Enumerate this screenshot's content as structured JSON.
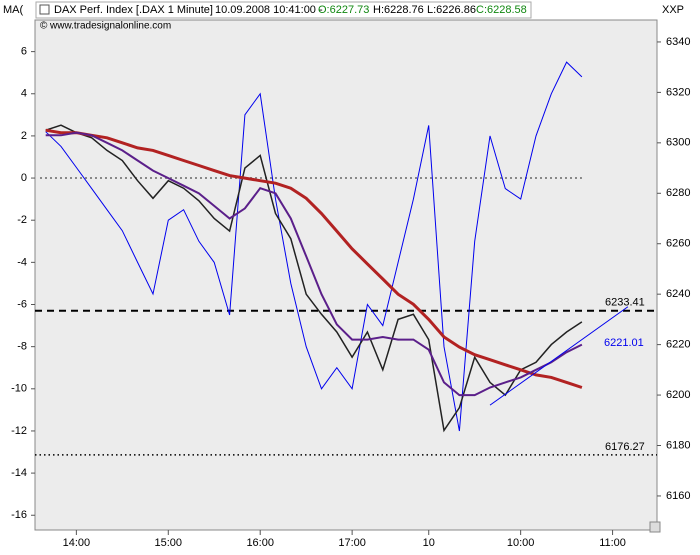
{
  "chart_data": {
    "type": "line",
    "header": {
      "instrument": "DAX Perf. Index [.DAX  1 Minute]",
      "timestamp": "10.09.2008 10:41:00 -",
      "open": "O:6227.73",
      "high": "H:6228.76",
      "low": "L:6226.86",
      "close": "C:6228.58"
    },
    "source": "www.tradesignalonline.com",
    "y_label": "MA(",
    "y2_label": "XXP",
    "x": [
      0,
      1,
      2,
      3,
      4,
      5,
      6,
      7,
      8,
      9,
      10,
      11,
      12,
      13,
      14,
      15,
      16,
      17,
      18,
      19,
      20,
      21,
      22,
      23,
      24,
      25,
      26,
      27,
      28,
      29,
      30,
      31,
      32,
      33,
      34,
      35
    ],
    "xlim": [
      -0.7,
      39.9
    ],
    "xticks": [
      {
        "value": 2,
        "label": "14:00"
      },
      {
        "value": 8,
        "label": "15:00"
      },
      {
        "value": 14,
        "label": "16:00"
      },
      {
        "value": 20,
        "label": "17:00"
      },
      {
        "value": 25,
        "label": "10"
      },
      {
        "value": 31,
        "label": "10:00"
      },
      {
        "value": 37,
        "label": "11:00"
      }
    ],
    "ylim": [
      -16.7,
      7.5
    ],
    "yticks": [
      6,
      4,
      2,
      0,
      -2,
      -4,
      -6,
      -8,
      -10,
      -12,
      -14,
      -16
    ],
    "y2lim": [
      6146.5,
      6348.7
    ],
    "y2ticks": [
      6340,
      6320,
      6300,
      6280,
      6260,
      6240,
      6220,
      6200,
      6180,
      6160
    ],
    "reference_line": 0,
    "series": [
      {
        "color": "#0000ee",
        "axis": "y",
        "width": 1,
        "values": [
          2.2,
          1.5,
          0.5,
          -0.5,
          -1.5,
          -2.5,
          -4,
          -5.5,
          -2,
          -1.5,
          -3,
          -4,
          -6.5,
          3,
          4,
          -1,
          -5,
          -8,
          -10,
          -9,
          -10,
          -6,
          -7,
          -4,
          -1,
          2.5,
          -8,
          -12,
          -3,
          2,
          -0.5,
          -1,
          2,
          4,
          5.5,
          4.8
        ]
      },
      {
        "color": "#222222",
        "axis": "y2",
        "width": 1.5,
        "values": [
          6305,
          6307,
          6304,
          6302,
          6297,
          6293,
          6285,
          6278,
          6285,
          6282,
          6277,
          6270,
          6265,
          6290,
          6295,
          6272,
          6262,
          6240,
          6232,
          6225,
          6215,
          6225,
          6210,
          6230,
          6232,
          6222,
          6186,
          6195,
          6215,
          6205,
          6200,
          6210,
          6213,
          6220,
          6225,
          6229
        ]
      },
      {
        "color": "#b22222",
        "axis": "y2",
        "width": 3,
        "values": [
          6305,
          6304,
          6304,
          6303,
          6302,
          6300,
          6298,
          6297,
          6295,
          6293,
          6291,
          6289,
          6287,
          6286,
          6285,
          6284,
          6282,
          6278,
          6272,
          6265,
          6258,
          6252,
          6246,
          6240,
          6236,
          6230,
          6223,
          6219,
          6216,
          6214,
          6212,
          6210,
          6208,
          6207,
          6205,
          6203
        ]
      },
      {
        "color": "#5b1f8a",
        "axis": "y2",
        "width": 2,
        "values": [
          6303,
          6303,
          6304,
          6303,
          6300,
          6297,
          6293,
          6289,
          6286,
          6283,
          6280,
          6275,
          6270,
          6274,
          6282,
          6280,
          6270,
          6255,
          6240,
          6228,
          6222,
          6222,
          6223,
          6222,
          6222,
          6218,
          6205,
          6200,
          6200,
          6203,
          6205,
          6207,
          6210,
          6213,
          6217,
          6220
        ]
      }
    ],
    "horizontal_lines": [
      {
        "value": 6233.41,
        "style": "dashed"
      },
      {
        "value": 6176.27,
        "style": "dotted"
      }
    ],
    "trendline": {
      "x": [
        29,
        38
      ],
      "values": [
        6196,
        6235
      ],
      "value": 6221.01,
      "color": "#0000ee"
    }
  }
}
